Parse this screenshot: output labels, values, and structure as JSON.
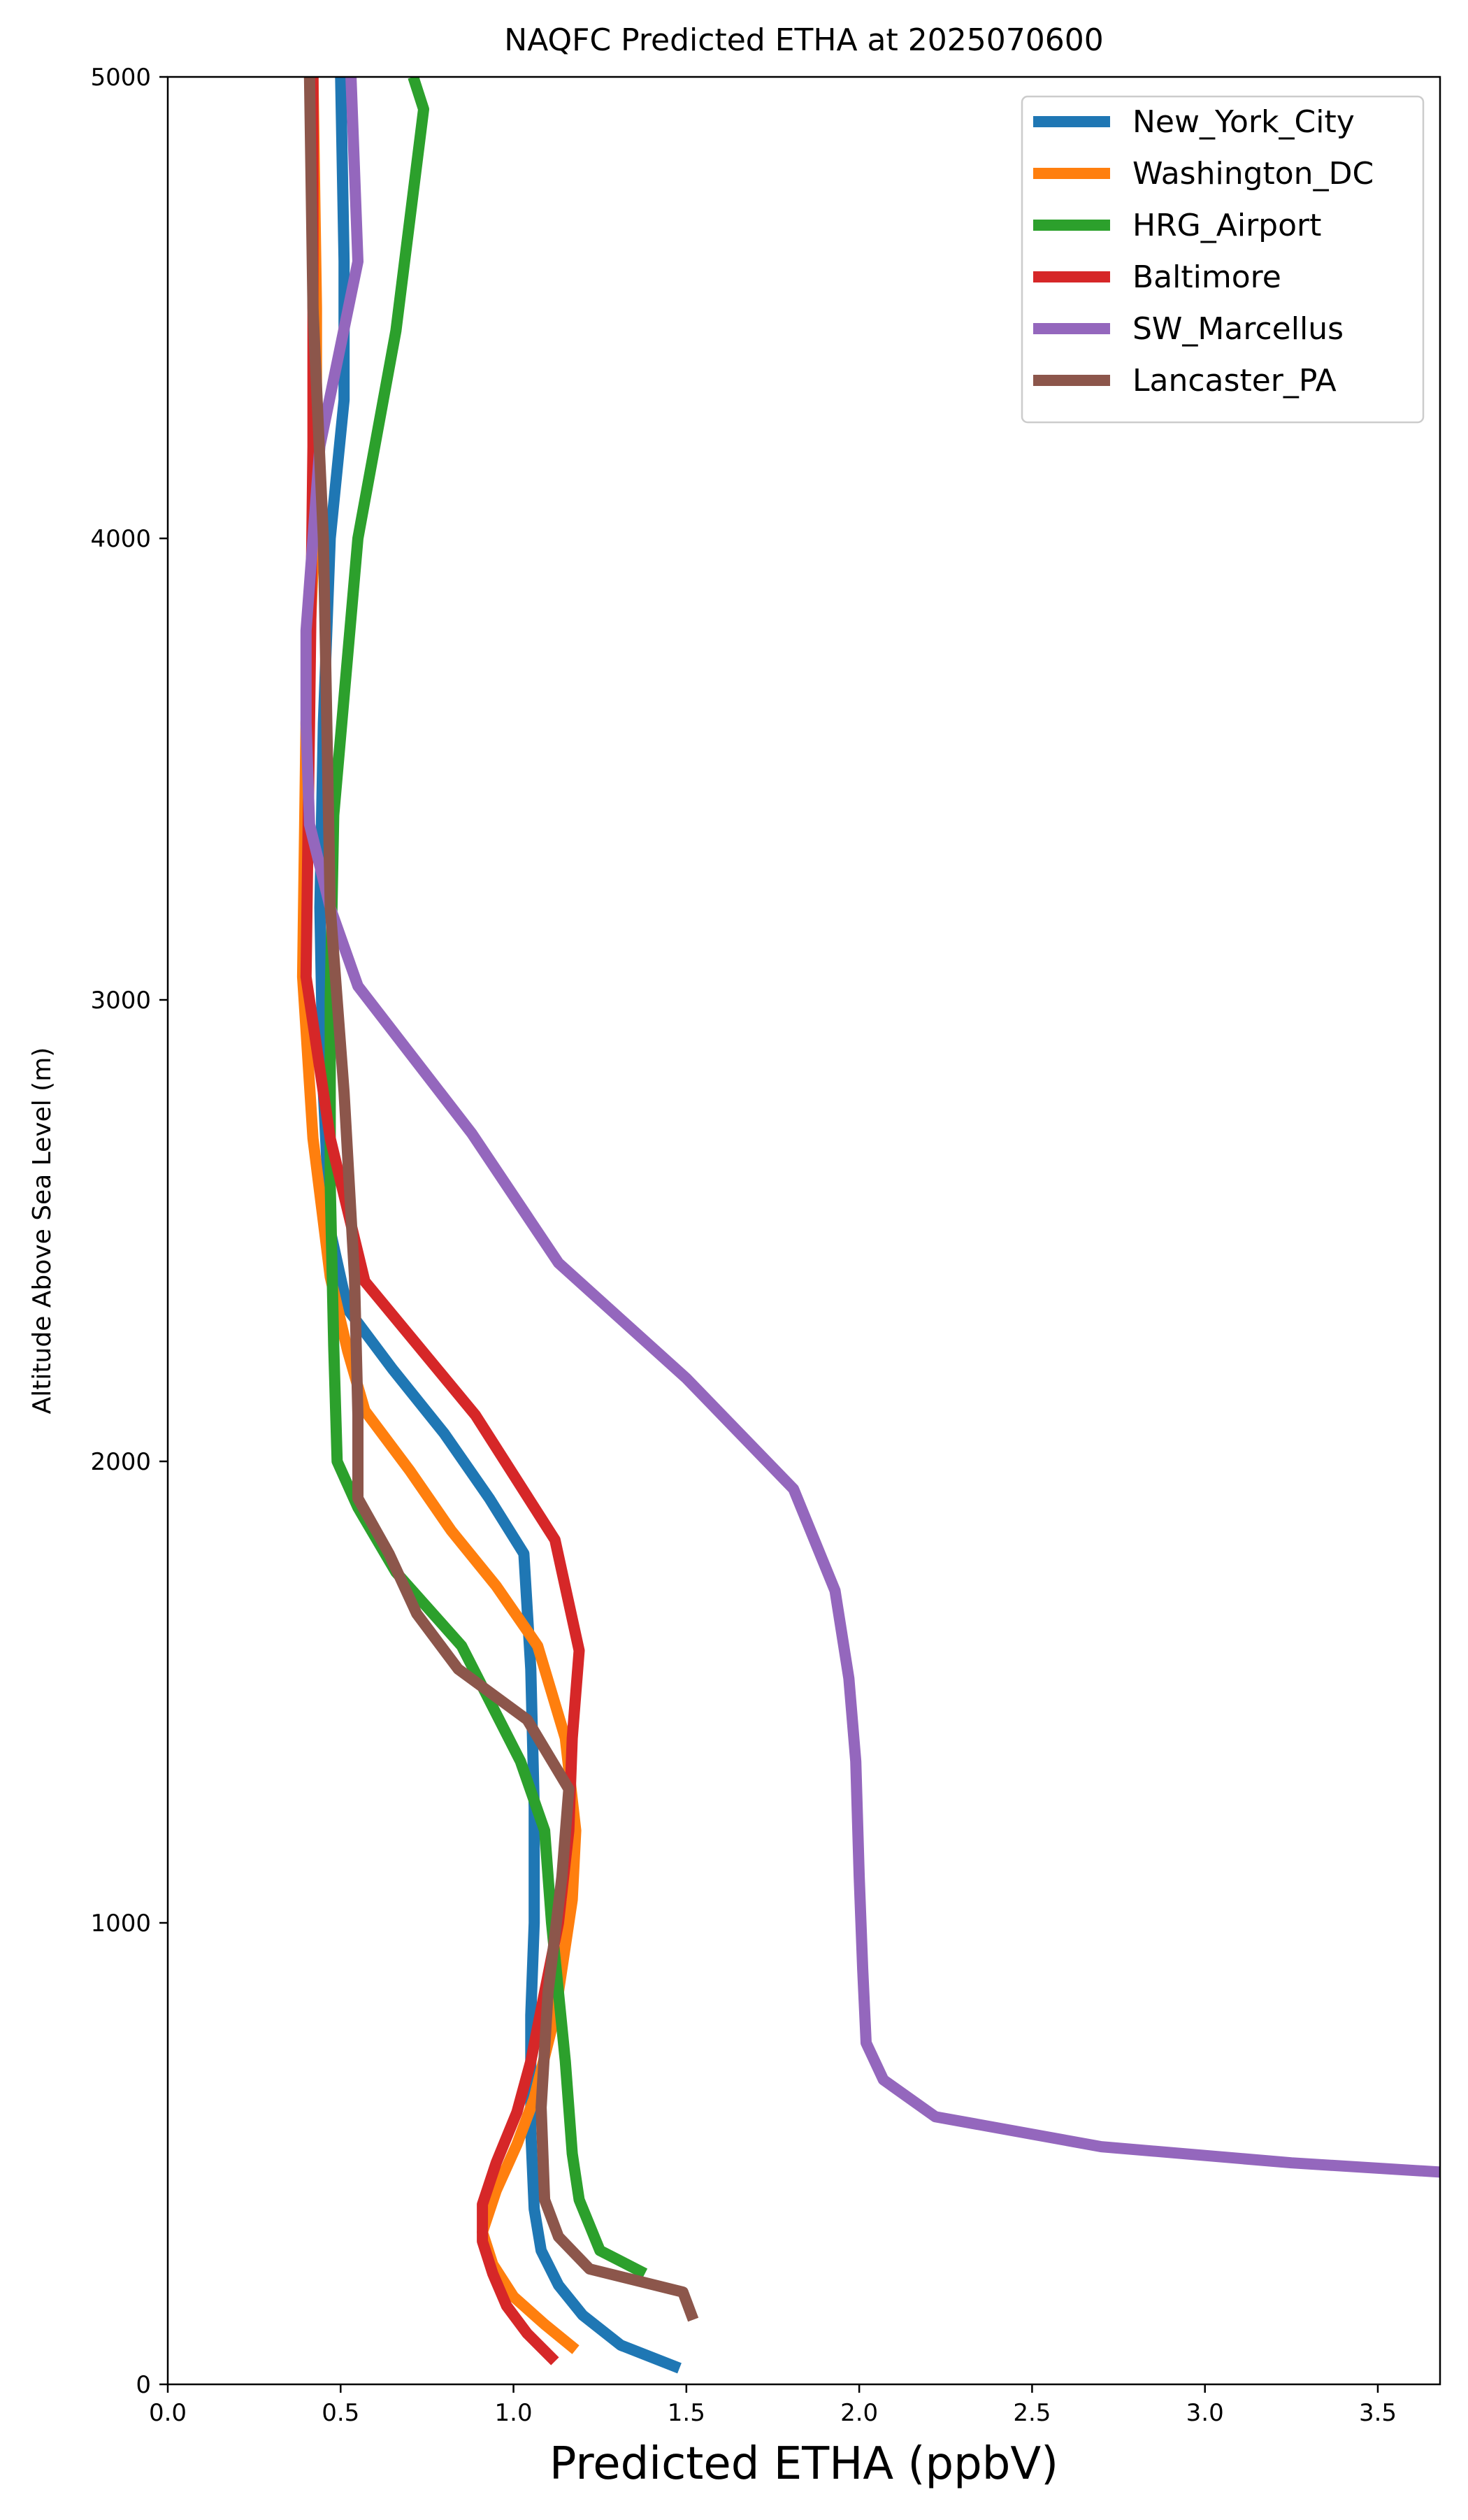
{
  "chart_data": {
    "type": "line",
    "title": "NAQFC Predicted ETHA at 2025070600",
    "xlabel": "Predicted ETHA (ppbV)",
    "ylabel": "Altitude Above Sea Level (m)",
    "xlim": [
      0,
      3.68
    ],
    "ylim": [
      0,
      5000
    ],
    "x_ticks": [
      0.0,
      0.5,
      1.0,
      1.5,
      2.0,
      2.5,
      3.0,
      3.5
    ],
    "x_tick_labels": [
      "0.0",
      "0.5",
      "1.0",
      "1.5",
      "2.0",
      "2.5",
      "3.0",
      "3.5"
    ],
    "y_ticks": [
      0,
      1000,
      2000,
      3000,
      4000,
      5000
    ],
    "y_tick_labels": [
      "0",
      "1000",
      "2000",
      "3000",
      "4000",
      "5000"
    ],
    "grid": false,
    "legend_position": "top-right",
    "series": [
      {
        "name": "New_York_City",
        "color": "#1f77b4",
        "points": [
          [
            1.48,
            35
          ],
          [
            1.31,
            85
          ],
          [
            1.2,
            150
          ],
          [
            1.13,
            215
          ],
          [
            1.08,
            290
          ],
          [
            1.06,
            380
          ],
          [
            1.05,
            550
          ],
          [
            1.05,
            800
          ],
          [
            1.06,
            1000
          ],
          [
            1.06,
            1250
          ],
          [
            1.05,
            1550
          ],
          [
            1.03,
            1800
          ],
          [
            0.93,
            1920
          ],
          [
            0.8,
            2060
          ],
          [
            0.65,
            2200
          ],
          [
            0.52,
            2330
          ],
          [
            0.47,
            2500
          ],
          [
            0.45,
            2800
          ],
          [
            0.44,
            3200
          ],
          [
            0.45,
            3600
          ],
          [
            0.47,
            4000
          ],
          [
            0.51,
            4300
          ],
          [
            0.51,
            4600
          ],
          [
            0.5,
            5000
          ]
        ]
      },
      {
        "name": "Washington_DC",
        "color": "#ff7f0e",
        "points": [
          [
            1.18,
            75
          ],
          [
            1.09,
            130
          ],
          [
            1.0,
            190
          ],
          [
            0.94,
            260
          ],
          [
            0.91,
            330
          ],
          [
            0.95,
            420
          ],
          [
            1.01,
            520
          ],
          [
            1.06,
            620
          ],
          [
            1.12,
            800
          ],
          [
            1.17,
            1050
          ],
          [
            1.18,
            1200
          ],
          [
            1.15,
            1400
          ],
          [
            1.07,
            1600
          ],
          [
            0.95,
            1730
          ],
          [
            0.82,
            1850
          ],
          [
            0.7,
            1980
          ],
          [
            0.57,
            2110
          ],
          [
            0.52,
            2240
          ],
          [
            0.47,
            2400
          ],
          [
            0.42,
            2700
          ],
          [
            0.39,
            3050
          ],
          [
            0.4,
            3600
          ],
          [
            0.43,
            4100
          ],
          [
            0.43,
            4500
          ],
          [
            0.42,
            5000
          ]
        ]
      },
      {
        "name": "HRG_Airport",
        "color": "#2ca02c",
        "points": [
          [
            1.38,
            240
          ],
          [
            1.25,
            290
          ],
          [
            1.19,
            400
          ],
          [
            1.17,
            500
          ],
          [
            1.15,
            700
          ],
          [
            1.11,
            1000
          ],
          [
            1.09,
            1200
          ],
          [
            1.02,
            1350
          ],
          [
            0.85,
            1600
          ],
          [
            0.66,
            1760
          ],
          [
            0.55,
            1900
          ],
          [
            0.49,
            2000
          ],
          [
            0.48,
            2250
          ],
          [
            0.47,
            2600
          ],
          [
            0.47,
            3000
          ],
          [
            0.48,
            3400
          ],
          [
            0.55,
            4000
          ],
          [
            0.66,
            4450
          ],
          [
            0.74,
            4930
          ],
          [
            0.71,
            5000
          ]
        ]
      },
      {
        "name": "Baltimore",
        "color": "#d62728",
        "points": [
          [
            1.12,
            50
          ],
          [
            1.04,
            110
          ],
          [
            0.98,
            170
          ],
          [
            0.94,
            240
          ],
          [
            0.91,
            310
          ],
          [
            0.91,
            390
          ],
          [
            0.95,
            480
          ],
          [
            1.01,
            590
          ],
          [
            1.05,
            700
          ],
          [
            1.09,
            850
          ],
          [
            1.13,
            1000
          ],
          [
            1.16,
            1200
          ],
          [
            1.17,
            1400
          ],
          [
            1.19,
            1590
          ],
          [
            1.12,
            1830
          ],
          [
            0.89,
            2100
          ],
          [
            0.57,
            2390
          ],
          [
            0.47,
            2700
          ],
          [
            0.4,
            3050
          ],
          [
            0.41,
            3600
          ],
          [
            0.42,
            4200
          ],
          [
            0.42,
            5000
          ]
        ]
      },
      {
        "name": "SW_Marcellus",
        "color": "#9467bd",
        "points": [
          [
            3.68,
            460
          ],
          [
            3.25,
            480
          ],
          [
            2.7,
            515
          ],
          [
            2.22,
            580
          ],
          [
            2.07,
            660
          ],
          [
            2.02,
            740
          ],
          [
            2.01,
            900
          ],
          [
            2.0,
            1100
          ],
          [
            1.99,
            1350
          ],
          [
            1.97,
            1530
          ],
          [
            1.93,
            1720
          ],
          [
            1.81,
            1940
          ],
          [
            1.5,
            2180
          ],
          [
            1.13,
            2430
          ],
          [
            0.88,
            2710
          ],
          [
            0.55,
            3030
          ],
          [
            0.47,
            3200
          ],
          [
            0.41,
            3380
          ],
          [
            0.4,
            3600
          ],
          [
            0.4,
            3800
          ],
          [
            0.44,
            4200
          ],
          [
            0.55,
            4600
          ],
          [
            0.53,
            5000
          ]
        ]
      },
      {
        "name": "Lancaster_PA",
        "color": "#8c564b",
        "points": [
          [
            1.52,
            140
          ],
          [
            1.49,
            200
          ],
          [
            1.22,
            250
          ],
          [
            1.13,
            320
          ],
          [
            1.09,
            400
          ],
          [
            1.08,
            600
          ],
          [
            1.1,
            850
          ],
          [
            1.14,
            1100
          ],
          [
            1.16,
            1290
          ],
          [
            1.04,
            1440
          ],
          [
            0.84,
            1550
          ],
          [
            0.72,
            1670
          ],
          [
            0.64,
            1800
          ],
          [
            0.55,
            1920
          ],
          [
            0.55,
            2100
          ],
          [
            0.54,
            2400
          ],
          [
            0.51,
            2800
          ],
          [
            0.47,
            3200
          ],
          [
            0.46,
            3600
          ],
          [
            0.45,
            4000
          ],
          [
            0.42,
            4500
          ],
          [
            0.41,
            5000
          ]
        ]
      }
    ]
  }
}
